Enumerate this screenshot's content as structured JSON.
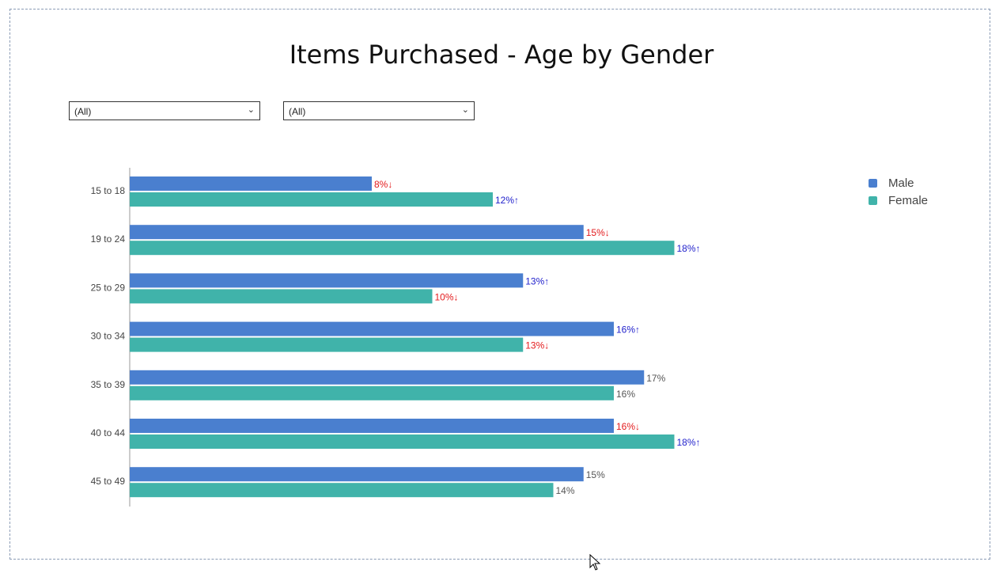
{
  "filters": [
    {
      "value": "(All)"
    },
    {
      "value": "(All)"
    }
  ],
  "colors": {
    "male": "#4a7fcf",
    "female": "#40b3aa",
    "down": "#e31a1c",
    "up": "#2222cc",
    "neutral": "#555555"
  },
  "chart_data": {
    "type": "bar",
    "orientation": "horizontal",
    "title": "Items Purchased - Age by Gender",
    "categories": [
      "15 to 18",
      "19 to 24",
      "25 to 29",
      "30 to 34",
      "35 to 39",
      "40 to 44",
      "45 to 49"
    ],
    "series": [
      {
        "name": "Male",
        "values": [
          8,
          15,
          13,
          16,
          17,
          16,
          15
        ],
        "labels": [
          "8%↓",
          "15%↓",
          "13%↑",
          "16%↑",
          "17%",
          "16%↓",
          "15%"
        ],
        "trend": [
          "down",
          "down",
          "up",
          "up",
          "none",
          "down",
          "none"
        ]
      },
      {
        "name": "Female",
        "values": [
          12,
          18,
          10,
          13,
          16,
          18,
          14
        ],
        "labels": [
          "12%↑",
          "18%↑",
          "10%↓",
          "13%↓",
          "16%",
          "18%↑",
          "14%"
        ],
        "trend": [
          "up",
          "up",
          "down",
          "down",
          "none",
          "up",
          "none"
        ]
      }
    ],
    "xlim": [
      0,
      27
    ],
    "legend_position": "top-right",
    "grid": false
  }
}
